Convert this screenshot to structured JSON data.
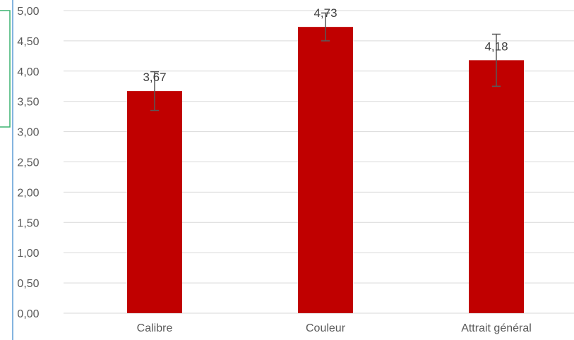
{
  "chart_data": {
    "type": "bar",
    "categories": [
      "Calibre",
      "Couleur",
      "Attrait général"
    ],
    "values": [
      3.67,
      4.73,
      4.18
    ],
    "data_labels": [
      "3,67",
      "4,73",
      "4,18"
    ],
    "error_bars": [
      {
        "low": 3.35,
        "high": 3.99
      },
      {
        "low": 4.5,
        "high": 4.96
      },
      {
        "low": 3.75,
        "high": 4.61
      }
    ],
    "ylim": [
      0,
      5
    ],
    "yticks": [
      0,
      0.5,
      1,
      1.5,
      2,
      2.5,
      3,
      3.5,
      4,
      4.5,
      5
    ],
    "ytick_labels": [
      "0,00",
      "0,50",
      "1,00",
      "1,50",
      "2,00",
      "2,50",
      "3,00",
      "3,50",
      "4,00",
      "4,50",
      "5,00"
    ],
    "grid": true,
    "title": "",
    "xlabel": "",
    "ylabel": "",
    "colors": {
      "bar": "#c00000",
      "grid": "#d9d9d9",
      "error_bar": "#595959",
      "left_border_blue": "#5b9bd5",
      "side_box_green": "#3cb371"
    }
  }
}
